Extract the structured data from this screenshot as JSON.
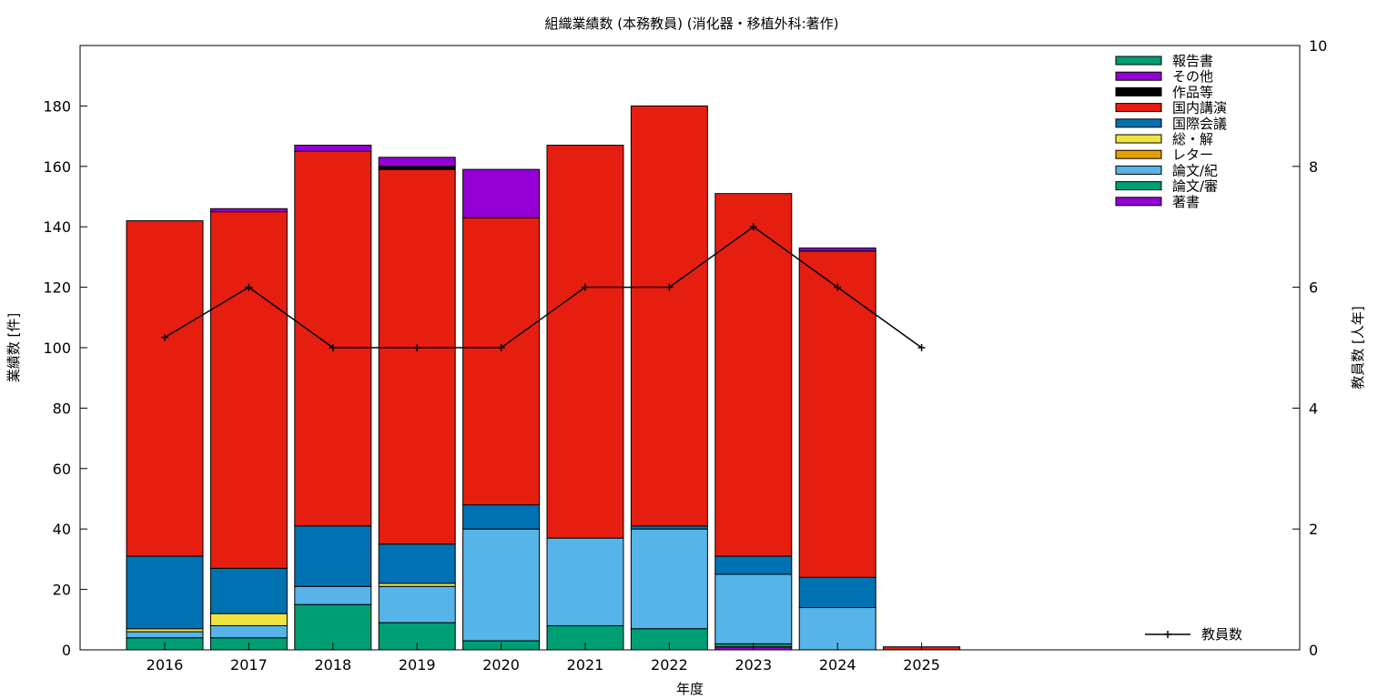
{
  "chart_data": {
    "type": "bar",
    "stacked": true,
    "title": "組織業績数 (本務教員) (消化器・移植外科:著作)",
    "xlabel": "年度",
    "ylabel": "業績数 [件]",
    "y2label": "教員数 [人年]",
    "ylim": [
      0,
      200
    ],
    "y2lim": [
      0,
      10
    ],
    "yticks": [
      0,
      20,
      40,
      60,
      80,
      100,
      120,
      140,
      160,
      180
    ],
    "y2ticks": [
      0,
      2,
      4,
      6,
      8,
      10
    ],
    "categories": [
      "2016",
      "2017",
      "2018",
      "2019",
      "2020",
      "2021",
      "2022",
      "2023",
      "2024",
      "2025"
    ],
    "grid": false,
    "legend_position": "top-right",
    "series": [
      {
        "name": "著書",
        "color": "#9400d3",
        "values": [
          0,
          0,
          0,
          0,
          0,
          0,
          0,
          1,
          0,
          0
        ]
      },
      {
        "name": "論文/審",
        "color": "#009e73",
        "values": [
          4,
          4,
          15,
          9,
          3,
          8,
          7,
          1,
          0,
          0
        ]
      },
      {
        "name": "論文/紀",
        "color": "#56b4e9",
        "values": [
          2,
          4,
          6,
          12,
          37,
          29,
          33,
          23,
          14,
          0
        ]
      },
      {
        "name": "レター",
        "color": "#e69f00",
        "values": [
          0,
          0,
          0,
          0,
          0,
          0,
          0,
          0,
          0,
          0
        ]
      },
      {
        "name": "総・解",
        "color": "#f0e442",
        "values": [
          1,
          4,
          0,
          1,
          0,
          0,
          0,
          0,
          0,
          0
        ]
      },
      {
        "name": "国際会議",
        "color": "#0072b2",
        "values": [
          24,
          15,
          20,
          13,
          8,
          0,
          1,
          6,
          10,
          0
        ]
      },
      {
        "name": "国内講演",
        "color": "#e51e10",
        "values": [
          111,
          118,
          124,
          124,
          95,
          130,
          139,
          120,
          108,
          1
        ]
      },
      {
        "name": "作品等",
        "color": "#000000",
        "values": [
          0,
          0,
          0,
          1,
          0,
          0,
          0,
          0,
          0,
          0
        ]
      },
      {
        "name": "その他",
        "color": "#9400d3",
        "values": [
          0,
          1,
          2,
          3,
          16,
          0,
          0,
          0,
          1,
          0
        ]
      },
      {
        "name": "報告書",
        "color": "#009e73",
        "values": [
          0,
          0,
          0,
          0,
          0,
          0,
          0,
          0,
          0,
          0
        ]
      }
    ],
    "line_series": {
      "name": "教員数",
      "color": "#000000",
      "axis": "right",
      "values": [
        5.17,
        6,
        5,
        5,
        5,
        6,
        6,
        7,
        6,
        5
      ]
    }
  }
}
